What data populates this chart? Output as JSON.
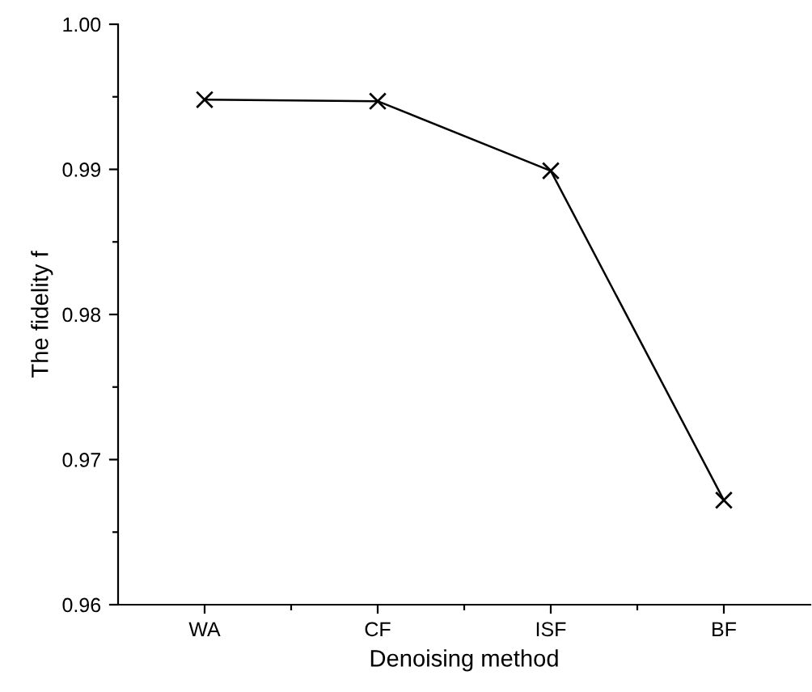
{
  "chart_data": {
    "type": "line",
    "xlabel": "Denoising method",
    "ylabel": "The fidelity f",
    "categories": [
      "WA",
      "CF",
      "ISF",
      "BF"
    ],
    "series": [
      {
        "color": "#000000",
        "values": [
          0.9948,
          0.9947,
          0.9899,
          0.9672
        ]
      }
    ],
    "ylim": [
      0.96,
      1.0
    ],
    "yticks": [
      0.96,
      0.97,
      0.98,
      0.99,
      {
        "value": 1.0,
        "label": "1.00"
      }
    ],
    "marker": "cross",
    "line_style": "solid",
    "grid": false,
    "legend": false
  }
}
